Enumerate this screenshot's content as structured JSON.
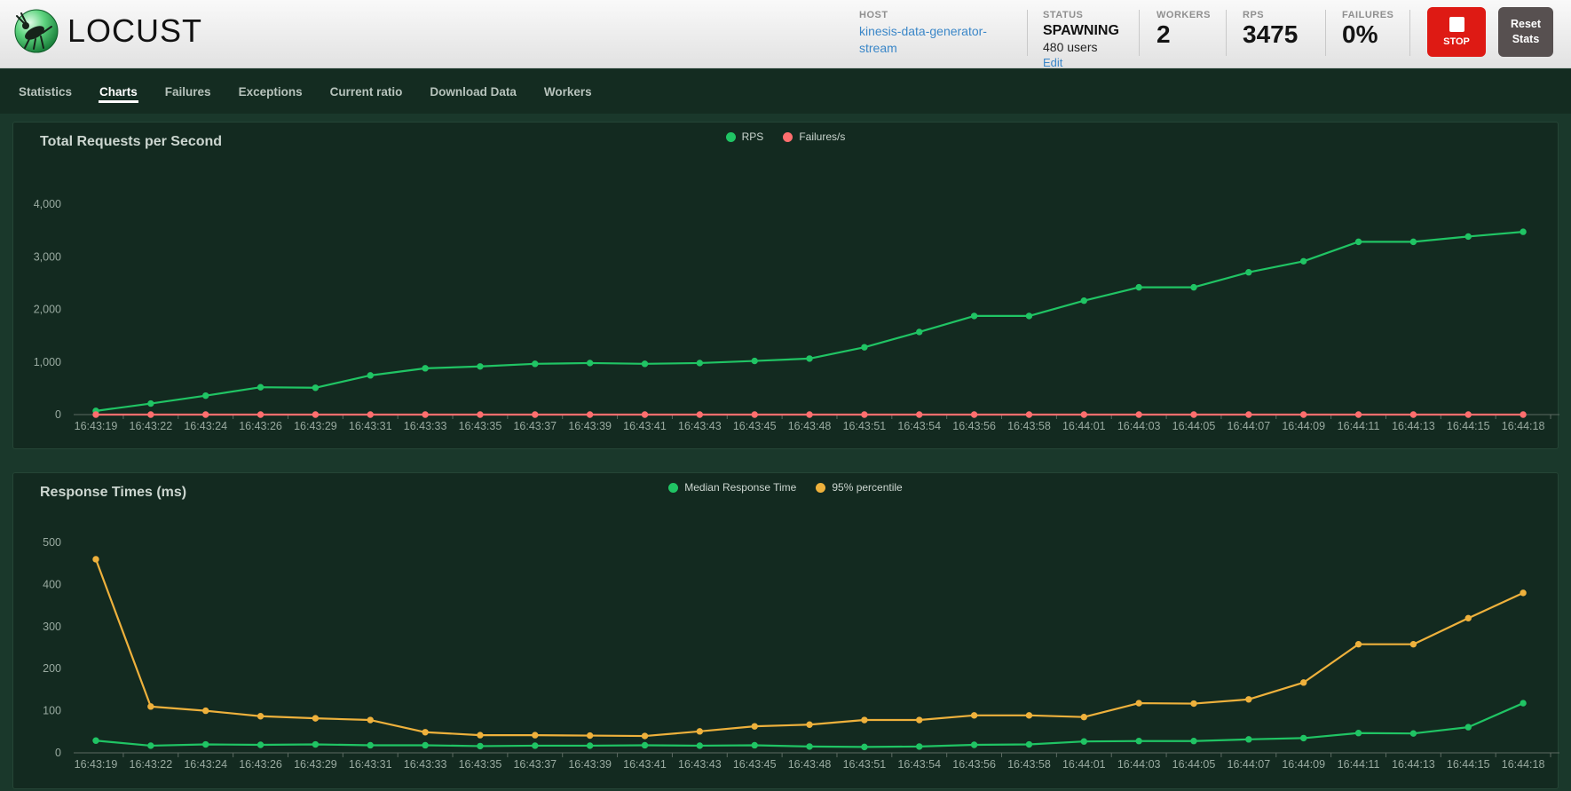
{
  "header": {
    "logo": "LOCUST",
    "host_label": "HOST",
    "host_value": "kinesis-data-generator-stream",
    "status_label": "STATUS",
    "status_value": "SPAWNING",
    "status_users": "480 users",
    "edit_link": "Edit",
    "workers_label": "WORKERS",
    "workers_value": "2",
    "rps_label": "RPS",
    "rps_value": "3475",
    "failures_label": "FAILURES",
    "failures_value": "0%",
    "stop_label": "STOP",
    "reset_label": "Reset Stats"
  },
  "colors": {
    "stop_button": "#de1a14",
    "reset_button": "#575050",
    "link_blue": "#3b87c8",
    "nav_bg": "#142c21",
    "panel_bg": "#132a20"
  },
  "nav": {
    "tabs": [
      {
        "label": "Statistics",
        "active": false
      },
      {
        "label": "Charts",
        "active": true
      },
      {
        "label": "Failures",
        "active": false
      },
      {
        "label": "Exceptions",
        "active": false
      },
      {
        "label": "Current ratio",
        "active": false
      },
      {
        "label": "Download Data",
        "active": false
      },
      {
        "label": "Workers",
        "active": false
      }
    ]
  },
  "chart_data": [
    {
      "type": "line",
      "title": "Total Requests per Second",
      "legend_position": "top-center",
      "grid": false,
      "x": [
        "16:43:19",
        "16:43:22",
        "16:43:24",
        "16:43:26",
        "16:43:29",
        "16:43:31",
        "16:43:33",
        "16:43:35",
        "16:43:37",
        "16:43:39",
        "16:43:41",
        "16:43:43",
        "16:43:45",
        "16:43:48",
        "16:43:51",
        "16:43:54",
        "16:43:56",
        "16:43:58",
        "16:44:01",
        "16:44:03",
        "16:44:05",
        "16:44:07",
        "16:44:09",
        "16:44:11",
        "16:44:13",
        "16:44:15",
        "16:44:18"
      ],
      "ylim": [
        0,
        4000
      ],
      "y_ticks": [
        0,
        1000,
        2000,
        3000,
        4000
      ],
      "y_tick_labels": [
        "0",
        "1,000",
        "2,000",
        "3,000",
        "4,000"
      ],
      "series": [
        {
          "name": "RPS",
          "color": "#20c464",
          "values": [
            70,
            210,
            360,
            520,
            510,
            745,
            880,
            915,
            965,
            980,
            965,
            980,
            1020,
            1065,
            1280,
            1570,
            1875,
            1875,
            2165,
            2420,
            2420,
            2705,
            2915,
            3285,
            3285,
            3385,
            3475
          ]
        },
        {
          "name": "Failures/s",
          "color": "#ff6e6e",
          "values": [
            0,
            0,
            0,
            0,
            0,
            0,
            0,
            0,
            0,
            0,
            0,
            0,
            0,
            0,
            0,
            0,
            0,
            0,
            0,
            0,
            0,
            0,
            0,
            0,
            0,
            0,
            0
          ]
        }
      ]
    },
    {
      "type": "line",
      "title": "Response Times (ms)",
      "legend_position": "top-center",
      "grid": false,
      "x": [
        "16:43:19",
        "16:43:22",
        "16:43:24",
        "16:43:26",
        "16:43:29",
        "16:43:31",
        "16:43:33",
        "16:43:35",
        "16:43:37",
        "16:43:39",
        "16:43:41",
        "16:43:43",
        "16:43:45",
        "16:43:48",
        "16:43:51",
        "16:43:54",
        "16:43:56",
        "16:43:58",
        "16:44:01",
        "16:44:03",
        "16:44:05",
        "16:44:07",
        "16:44:09",
        "16:44:11",
        "16:44:13",
        "16:44:15",
        "16:44:18"
      ],
      "ylim": [
        0,
        500
      ],
      "y_ticks": [
        0,
        100,
        200,
        300,
        400,
        500
      ],
      "y_tick_labels": [
        "0",
        "100",
        "200",
        "300",
        "400",
        "500"
      ],
      "series": [
        {
          "name": "Median Response Time",
          "color": "#20c464",
          "values": [
            29,
            17,
            20,
            19,
            20,
            18,
            18,
            16,
            17,
            17,
            18,
            17,
            18,
            15,
            14,
            15,
            19,
            20,
            27,
            28,
            28,
            32,
            35,
            47,
            46,
            61,
            118
          ]
        },
        {
          "name": "95% percentile",
          "color": "#eeb13c",
          "values": [
            460,
            110,
            100,
            87,
            82,
            78,
            49,
            42,
            42,
            41,
            40,
            51,
            63,
            67,
            78,
            78,
            89,
            89,
            85,
            118,
            117,
            127,
            167,
            258,
            258,
            320,
            380
          ]
        }
      ]
    }
  ]
}
